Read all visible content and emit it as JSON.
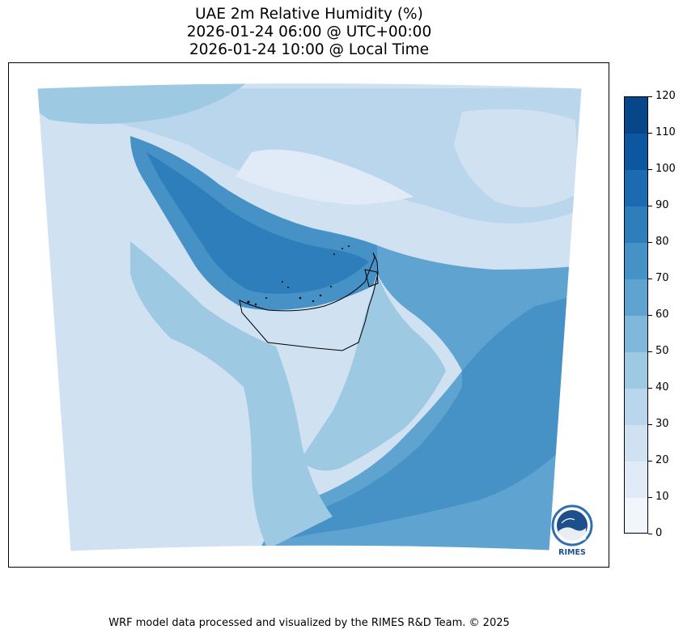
{
  "title": {
    "line1": "UAE 2m Relative Humidity (%)",
    "line2": "2026-01-24 06:00 @ UTC+00:00",
    "line3": "2026-01-24 10:00 @ Local Time"
  },
  "colorbar": {
    "levels": [
      0,
      10,
      20,
      30,
      40,
      50,
      60,
      70,
      80,
      90,
      100,
      110,
      120
    ],
    "tick_labels": [
      "0",
      "10",
      "20",
      "30",
      "40",
      "50",
      "60",
      "70",
      "80",
      "90",
      "100",
      "110",
      "120"
    ],
    "colors": [
      "#f1f6fc",
      "#e0ebf7",
      "#d0e1f2",
      "#b9d6ec",
      "#9ec9e2",
      "#7fb8da",
      "#5fa4d0",
      "#4692c7",
      "#2f7ebc",
      "#1c6aaf",
      "#0d57a1",
      "#08468a",
      "#08306b"
    ]
  },
  "logo": {
    "name": "RIMES",
    "text": "RIMES"
  },
  "footer": {
    "text": "WRF model data processed and visualized by the RIMES R&D Team. © 2025"
  },
  "map": {
    "variable": "2m relative humidity",
    "boundary": "UAE border outline",
    "colors": {
      "sea_gulf": "#4692c7",
      "sea_gulf_core": "#2f7ebc",
      "arabian_sea": "#4692c7",
      "arabian_sea_coast": "#5fa4d0",
      "land_dry": "#d0e1f2",
      "land_moderate": "#b9d6ec",
      "land_very_dry": "#e0ebf7",
      "land_humid": "#9ec9e2"
    }
  }
}
